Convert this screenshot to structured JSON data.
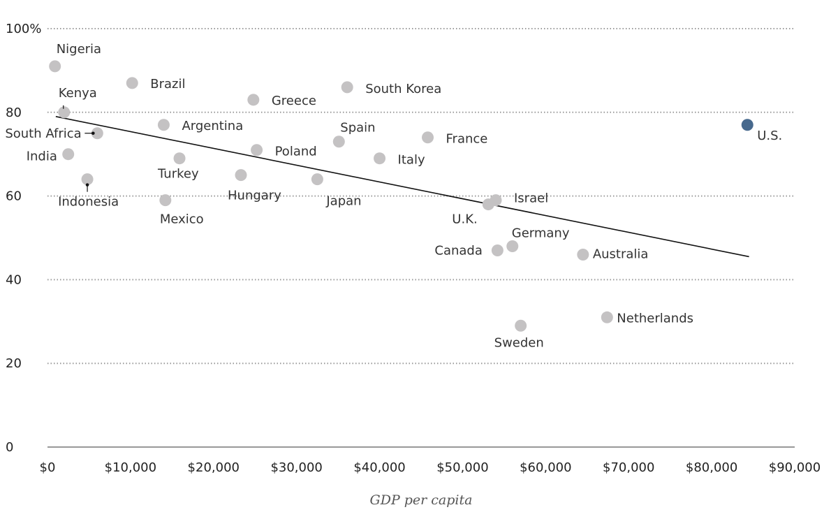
{
  "chart_data": {
    "type": "scatter",
    "title": "",
    "xlabel": "GDP per capita",
    "ylabel": "",
    "xlim": [
      0,
      90000
    ],
    "ylim": [
      0,
      100
    ],
    "grid": true,
    "x_ticks": [
      {
        "value": 0,
        "label": "$0"
      },
      {
        "value": 10000,
        "label": "$10,000"
      },
      {
        "value": 20000,
        "label": "$20,000"
      },
      {
        "value": 30000,
        "label": "$30,000"
      },
      {
        "value": 40000,
        "label": "$40,000"
      },
      {
        "value": 50000,
        "label": "$50,000"
      },
      {
        "value": 60000,
        "label": "$60,000"
      },
      {
        "value": 70000,
        "label": "$70,000"
      },
      {
        "value": 80000,
        "label": "$80,000"
      },
      {
        "value": 90000,
        "label": "$90,000"
      }
    ],
    "y_ticks": [
      {
        "value": 0,
        "label": "0"
      },
      {
        "value": 20,
        "label": "20"
      },
      {
        "value": 40,
        "label": "40"
      },
      {
        "value": 60,
        "label": "60"
      },
      {
        "value": 80,
        "label": "80"
      },
      {
        "value": 100,
        "label": "100%"
      }
    ],
    "colors": {
      "point": "#c4c2c3",
      "highlight": "#47698d",
      "trendline": "#111111"
    },
    "trendline": {
      "x": [
        1000,
        84500
      ],
      "y": [
        79,
        45.5
      ]
    },
    "points": [
      {
        "name": "Nigeria",
        "x": 900,
        "y": 91
      },
      {
        "name": "Kenya",
        "x": 2000,
        "y": 80
      },
      {
        "name": "South Africa",
        "x": 6000,
        "y": 75
      },
      {
        "name": "India",
        "x": 2500,
        "y": 70
      },
      {
        "name": "Indonesia",
        "x": 4800,
        "y": 64
      },
      {
        "name": "Brazil",
        "x": 10200,
        "y": 87
      },
      {
        "name": "Argentina",
        "x": 14000,
        "y": 77
      },
      {
        "name": "Turkey",
        "x": 15900,
        "y": 69
      },
      {
        "name": "Mexico",
        "x": 14200,
        "y": 59
      },
      {
        "name": "Greece",
        "x": 24800,
        "y": 83
      },
      {
        "name": "Poland",
        "x": 25200,
        "y": 71
      },
      {
        "name": "Hungary",
        "x": 23300,
        "y": 65
      },
      {
        "name": "Japan",
        "x": 32500,
        "y": 64
      },
      {
        "name": "South Korea",
        "x": 36100,
        "y": 86
      },
      {
        "name": "Spain",
        "x": 35100,
        "y": 73
      },
      {
        "name": "Italy",
        "x": 40000,
        "y": 69
      },
      {
        "name": "France",
        "x": 45800,
        "y": 74
      },
      {
        "name": "Israel",
        "x": 54000,
        "y": 59
      },
      {
        "name": "U.K.",
        "x": 53100,
        "y": 58
      },
      {
        "name": "Germany",
        "x": 56000,
        "y": 48
      },
      {
        "name": "Canada",
        "x": 54200,
        "y": 47
      },
      {
        "name": "Australia",
        "x": 64500,
        "y": 46
      },
      {
        "name": "Sweden",
        "x": 57000,
        "y": 29
      },
      {
        "name": "Netherlands",
        "x": 67400,
        "y": 31
      },
      {
        "name": "U.S.",
        "x": 84300,
        "y": 77,
        "highlight": true
      }
    ]
  }
}
